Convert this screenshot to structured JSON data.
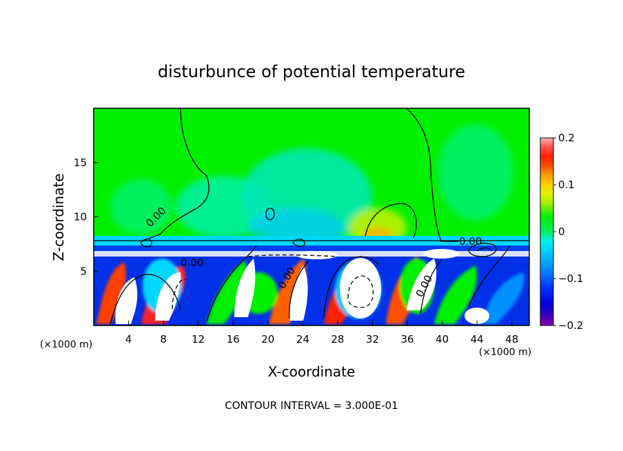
{
  "chart_data": {
    "type": "heatmap",
    "title": "disturbunce of potential temperature",
    "xlabel": "X-coordinate",
    "ylabel": "Z-coordinate",
    "x_units": "(×1000 m)",
    "xlim": [
      0,
      50
    ],
    "ylim": [
      0,
      20
    ],
    "x_ticks": [
      4,
      8,
      12,
      16,
      20,
      24,
      28,
      32,
      36,
      40,
      44,
      48
    ],
    "y_ticks": [
      5,
      10,
      15
    ],
    "colorbar": {
      "range": [
        -0.2,
        0.2
      ],
      "tick_values": [
        0.2,
        0.1,
        0,
        -0.1,
        -0.2
      ],
      "tick_labels": [
        "0.2",
        "0.1",
        "0",
        "−0.1",
        "−0.2"
      ],
      "colors": [
        "#8B00A8",
        "#3A00B8",
        "#0000E0",
        "#0030FF",
        "#0070FF",
        "#00A0FF",
        "#00D0FF",
        "#00F0E8",
        "#00F0A0",
        "#00F060",
        "#00F000",
        "#40F000",
        "#A0F000",
        "#E0F000",
        "#FFD000",
        "#FFA000",
        "#FF6000",
        "#FF2000",
        "#FF4040",
        "#FF8080",
        "#FFB0B0"
      ]
    },
    "contour_interval_text": "CONTOUR INTERVAL = 3.000E-01",
    "contour_labels": [
      "0.00",
      "0.00",
      "0.00",
      "0.00",
      "0.00"
    ],
    "features": {
      "upper_layer_value": 0.0,
      "inversion_height": 7.5,
      "turbulent_layer_top": 7.0
    }
  }
}
